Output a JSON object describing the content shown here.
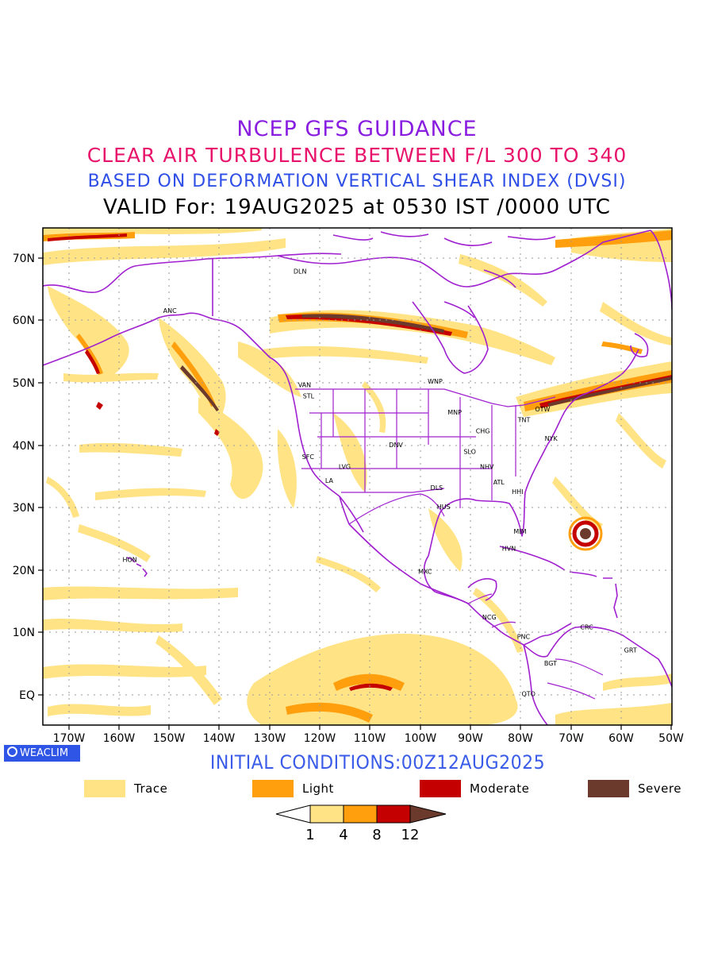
{
  "title": {
    "line1": "NCEP GFS GUIDANCE",
    "line2": "CLEAR AIR TURBULENCE BETWEEN F/L 300 TO 340",
    "line3": "BASED ON DEFORMATION VERTICAL SHEAR INDEX (DVSI)",
    "line4": "VALID For: 19AUG2025 at 0530 IST /0000 UTC"
  },
  "colors": {
    "title1": "#8a1ee0",
    "title2": "#e8146c",
    "title3": "#2f4fe6",
    "trace": "#ffe385",
    "light": "#ff9f0d",
    "moderate": "#c40000",
    "severe": "#6b3a2c",
    "borders": "#a020d0",
    "grid": "#9a9a9a"
  },
  "map": {
    "lat_labels": [
      "70N",
      "60N",
      "50N",
      "40N",
      "30N",
      "20N",
      "10N",
      "EQ"
    ],
    "lon_labels": [
      "170W",
      "160W",
      "150W",
      "140W",
      "130W",
      "120W",
      "110W",
      "100W",
      "90W",
      "80W",
      "70W",
      "60W",
      "50W"
    ],
    "stations": [
      {
        "code": "ANC",
        "lon": -149.9,
        "lat": 61.2
      },
      {
        "code": "DLN",
        "lon": -124,
        "lat": 67.5
      },
      {
        "code": "VAN",
        "lon": -123.1,
        "lat": 49.3
      },
      {
        "code": "STL",
        "lon": -122.3,
        "lat": 47.5
      },
      {
        "code": "WNP",
        "lon": -97.1,
        "lat": 49.9
      },
      {
        "code": "MNP",
        "lon": -93.2,
        "lat": 44.9
      },
      {
        "code": "OTW",
        "lon": -75.7,
        "lat": 45.4
      },
      {
        "code": "TNT",
        "lon": -79.4,
        "lat": 43.7
      },
      {
        "code": "CHG",
        "lon": -87.6,
        "lat": 41.9
      },
      {
        "code": "NYK",
        "lon": -74.0,
        "lat": 40.7
      },
      {
        "code": "DNV",
        "lon": -104.9,
        "lat": 39.7
      },
      {
        "code": "SFC",
        "lon": -122.4,
        "lat": 37.8
      },
      {
        "code": "LVG",
        "lon": -115.1,
        "lat": 36.2
      },
      {
        "code": "SLO",
        "lon": -90.2,
        "lat": 38.6
      },
      {
        "code": "NHV",
        "lon": -86.8,
        "lat": 36.2
      },
      {
        "code": "LA",
        "lon": -118.2,
        "lat": 34.0
      },
      {
        "code": "ATL",
        "lon": -84.4,
        "lat": 33.7
      },
      {
        "code": "DLS",
        "lon": -96.8,
        "lat": 32.8
      },
      {
        "code": "HHI",
        "lon": -80.7,
        "lat": 32.2
      },
      {
        "code": "HUS",
        "lon": -95.4,
        "lat": 29.8
      },
      {
        "code": "MIM",
        "lon": -80.2,
        "lat": 25.8
      },
      {
        "code": "HVN",
        "lon": -82.4,
        "lat": 23.1
      },
      {
        "code": "HON",
        "lon": -157.9,
        "lat": 21.3
      },
      {
        "code": "MXC",
        "lon": -99.1,
        "lat": 19.4
      },
      {
        "code": "NCG",
        "lon": -86.3,
        "lat": 12.1
      },
      {
        "code": "CRC",
        "lon": -66.9,
        "lat": 10.5
      },
      {
        "code": "PNC",
        "lon": -79.5,
        "lat": 9.0
      },
      {
        "code": "GRT",
        "lon": -58.2,
        "lat": 6.8
      },
      {
        "code": "BGT",
        "lon": -74.1,
        "lat": 4.7
      },
      {
        "code": "QTO",
        "lon": -78.5,
        "lat": -0.2
      }
    ]
  },
  "logo": "WEACLIM",
  "initial_conditions": "INITIAL CONDITIONS:00Z12AUG2025",
  "legend": {
    "items": [
      {
        "label": "Trace",
        "color": "#ffe385"
      },
      {
        "label": "Light",
        "color": "#ff9f0d"
      },
      {
        "label": "Moderate",
        "color": "#c40000"
      },
      {
        "label": "Severe",
        "color": "#6b3a2c"
      }
    ],
    "colorbar_ticks": [
      "1",
      "4",
      "8",
      "12"
    ]
  }
}
